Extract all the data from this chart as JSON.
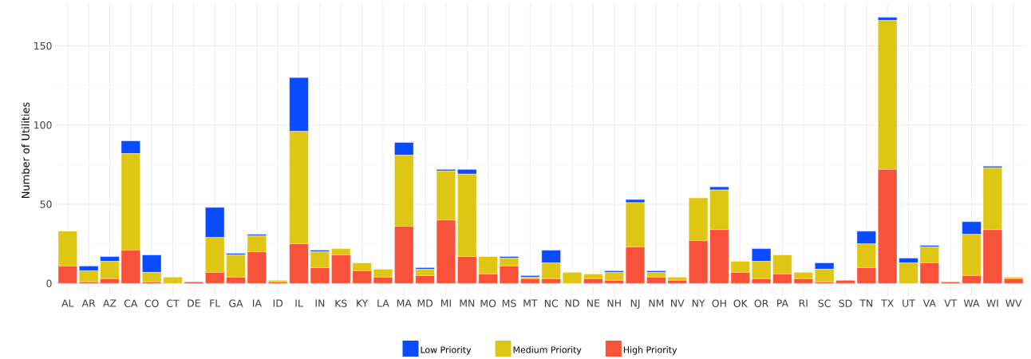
{
  "chart_data": {
    "type": "bar",
    "stacked": true,
    "ylabel": "Number of Utilities",
    "categories": [
      "AL",
      "AR",
      "AZ",
      "CA",
      "CO",
      "CT",
      "DE",
      "FL",
      "GA",
      "IA",
      "ID",
      "IL",
      "IN",
      "KS",
      "KY",
      "LA",
      "MA",
      "MD",
      "MI",
      "MN",
      "MO",
      "MS",
      "MT",
      "NC",
      "ND",
      "NE",
      "NH",
      "NJ",
      "NM",
      "NV",
      "NY",
      "OH",
      "OK",
      "OR",
      "PA",
      "RI",
      "SC",
      "SD",
      "TN",
      "TX",
      "UT",
      "VA",
      "VT",
      "WA",
      "WI",
      "WV"
    ],
    "series": [
      {
        "name": "High Priority",
        "color": "#f8533a",
        "values": [
          11,
          1,
          3,
          21,
          1,
          0,
          1,
          7,
          4,
          20,
          1,
          25,
          10,
          18,
          8,
          4,
          36,
          5,
          40,
          17,
          6,
          11,
          3,
          3,
          0,
          3,
          2,
          23,
          4,
          2,
          27,
          34,
          7,
          3,
          6,
          3,
          1,
          2,
          10,
          72,
          0,
          13,
          1,
          5,
          34,
          3
        ]
      },
      {
        "name": "Medium Priority",
        "color": "#dfc614",
        "values": [
          22,
          7,
          11,
          61,
          6,
          4,
          0,
          22,
          14,
          10,
          1,
          71,
          10,
          4,
          5,
          5,
          45,
          4,
          31,
          52,
          11,
          5,
          1,
          10,
          7,
          3,
          5,
          28,
          3,
          2,
          27,
          25,
          7,
          11,
          12,
          4,
          8,
          0,
          15,
          94,
          13,
          10,
          0,
          26,
          39,
          1
        ]
      },
      {
        "name": "Low Priority",
        "color": "#0a4bff",
        "values": [
          0,
          3,
          3,
          8,
          11,
          0,
          0,
          19,
          1,
          1,
          0,
          34,
          1,
          0,
          0,
          0,
          8,
          1,
          1,
          3,
          0,
          1,
          1,
          8,
          0,
          0,
          1,
          2,
          1,
          0,
          0,
          2,
          0,
          8,
          0,
          0,
          4,
          0,
          8,
          2,
          3,
          1,
          0,
          8,
          1,
          0
        ]
      }
    ],
    "ylim": [
      -8.4,
      176.4
    ],
    "yticks": [
      0,
      50,
      100,
      150
    ],
    "grid": true,
    "legend": "bottom"
  }
}
